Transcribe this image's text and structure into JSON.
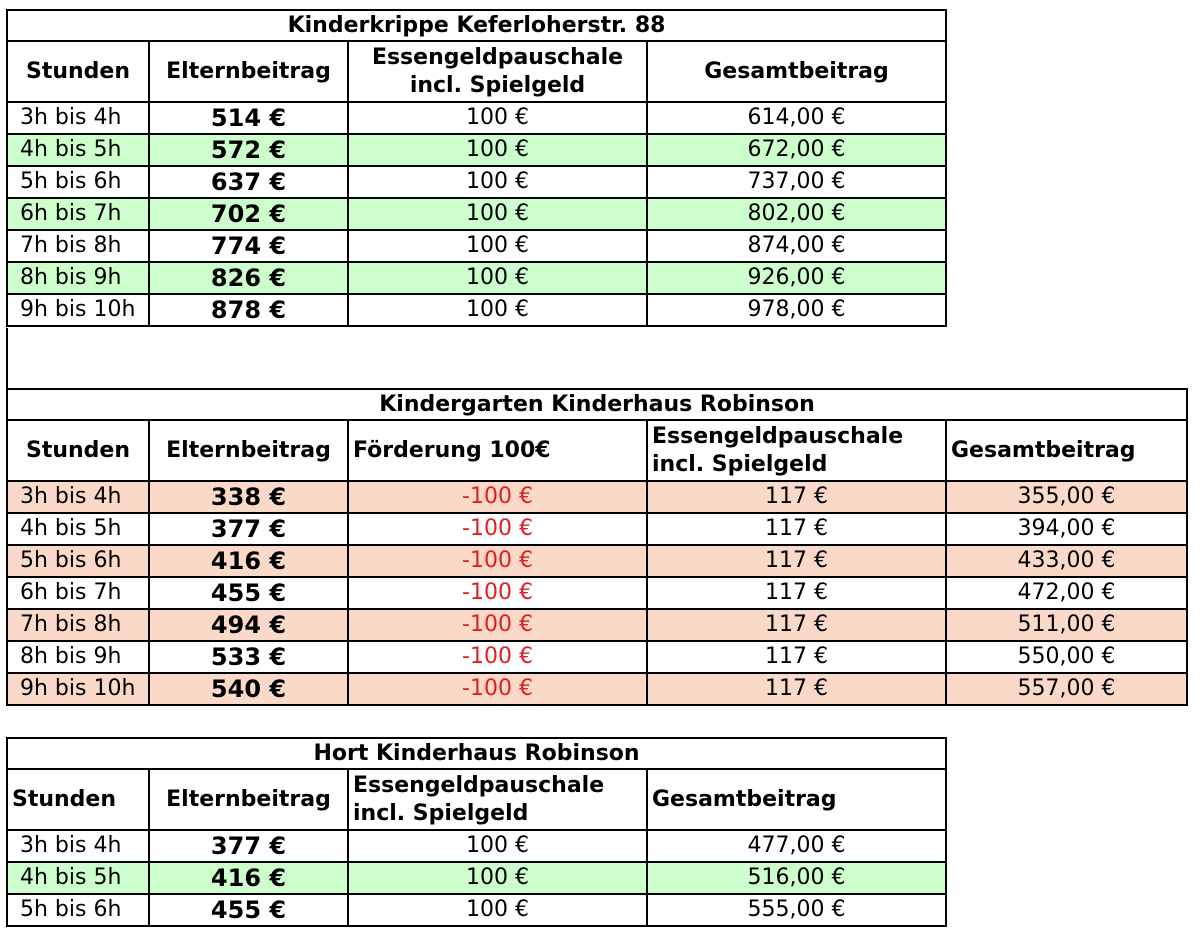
{
  "table1": {
    "title": "Kinderkrippe Keferloherstr. 88",
    "headers": {
      "stunden": "Stunden",
      "elternbeitrag": "Elternbeitrag",
      "essengeld_line1": "Essengeldpauschale",
      "essengeld_line2": "incl. Spielgeld",
      "gesamt": "Gesamtbeitrag"
    },
    "rows": [
      {
        "stunden": "3h bis 4h",
        "elternbeitrag": "514 €",
        "essengeld": "100 €",
        "gesamt": "614,00 €"
      },
      {
        "stunden": "4h bis 5h",
        "elternbeitrag": "572 €",
        "essengeld": "100 €",
        "gesamt": "672,00 €"
      },
      {
        "stunden": "5h bis 6h",
        "elternbeitrag": "637 €",
        "essengeld": "100 €",
        "gesamt": "737,00 €"
      },
      {
        "stunden": "6h bis 7h",
        "elternbeitrag": "702 €",
        "essengeld": "100 €",
        "gesamt": "802,00 €"
      },
      {
        "stunden": "7h bis 8h",
        "elternbeitrag": "774 €",
        "essengeld": "100 €",
        "gesamt": "874,00 €"
      },
      {
        "stunden": "8h bis 9h",
        "elternbeitrag": "826 €",
        "essengeld": "100 €",
        "gesamt": "926,00 €"
      },
      {
        "stunden": "9h bis 10h",
        "elternbeitrag": "878 €",
        "essengeld": "100 €",
        "gesamt": "978,00 €"
      }
    ]
  },
  "table2": {
    "title": "Kindergarten Kinderhaus Robinson",
    "headers": {
      "stunden": "Stunden",
      "elternbeitrag": "Elternbeitrag",
      "foerderung": "Förderung 100€",
      "essengeld_line1": "Essengeldpauschale",
      "essengeld_line2": "incl. Spielgeld",
      "gesamt": "Gesamtbeitrag"
    },
    "rows": [
      {
        "stunden": "3h bis 4h",
        "elternbeitrag": "338 €",
        "foerderung": "-100 €",
        "essengeld": "117 €",
        "gesamt": "355,00 €"
      },
      {
        "stunden": "4h bis 5h",
        "elternbeitrag": "377 €",
        "foerderung": "-100 €",
        "essengeld": "117 €",
        "gesamt": "394,00 €"
      },
      {
        "stunden": "5h bis 6h",
        "elternbeitrag": "416 €",
        "foerderung": "-100 €",
        "essengeld": "117 €",
        "gesamt": "433,00 €"
      },
      {
        "stunden": "6h bis 7h",
        "elternbeitrag": "455 €",
        "foerderung": "-100 €",
        "essengeld": "117 €",
        "gesamt": "472,00 €"
      },
      {
        "stunden": "7h bis 8h",
        "elternbeitrag": "494 €",
        "foerderung": "-100 €",
        "essengeld": "117 €",
        "gesamt": "511,00 €"
      },
      {
        "stunden": "8h bis 9h",
        "elternbeitrag": "533 €",
        "foerderung": "-100 €",
        "essengeld": "117 €",
        "gesamt": "550,00 €"
      },
      {
        "stunden": "9h bis 10h",
        "elternbeitrag": "540 €",
        "foerderung": "-100 €",
        "essengeld": "117 €",
        "gesamt": "557,00 €"
      }
    ]
  },
  "table3": {
    "title": "Hort Kinderhaus Robinson",
    "headers": {
      "stunden": "Stunden",
      "elternbeitrag": "Elternbeitrag",
      "essengeld_line1": "Essengeldpauschale",
      "essengeld_line2": "incl. Spielgeld",
      "gesamt": "Gesamtbeitrag"
    },
    "rows": [
      {
        "stunden": "3h bis 4h",
        "elternbeitrag": "377 €",
        "essengeld": "100 €",
        "gesamt": "477,00 €"
      },
      {
        "stunden": "4h bis 5h",
        "elternbeitrag": "416 €",
        "essengeld": "100 €",
        "gesamt": "516,00 €"
      },
      {
        "stunden": "5h bis 6h",
        "elternbeitrag": "455 €",
        "essengeld": "100 €",
        "gesamt": "555,00 €"
      }
    ]
  },
  "colors": {
    "highlight_green": "#ccffcc",
    "highlight_salmon": "#fbd9c9",
    "negative_red": "#e02020"
  }
}
